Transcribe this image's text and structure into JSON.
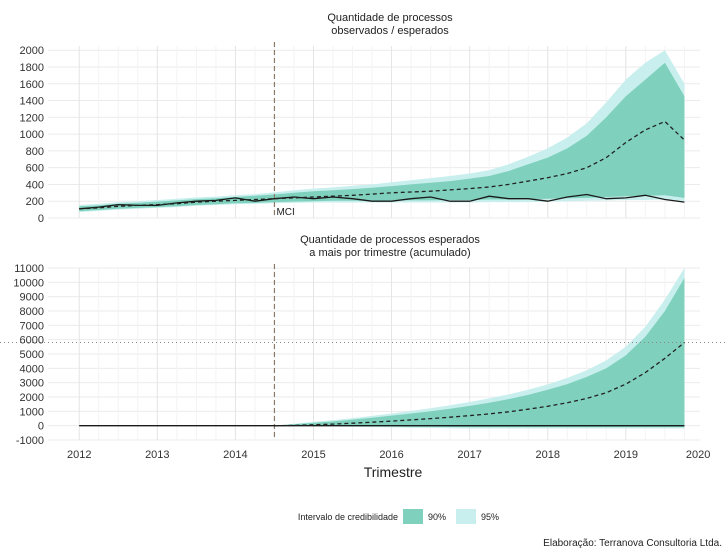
{
  "chart_data": [
    {
      "type": "line",
      "title_lines": [
        "Quantidade de processos",
        "observados / esperados"
      ],
      "xlim": [
        2011.6,
        2019.95
      ],
      "ylim": [
        0,
        2050
      ],
      "yticks": [
        0,
        200,
        400,
        600,
        800,
        1000,
        1200,
        1400,
        1600,
        1800,
        2000
      ],
      "grid": true,
      "intervention": {
        "x": 2014.5,
        "label": "MCI"
      },
      "observed": {
        "x": [
          2012.0,
          2012.25,
          2012.5,
          2012.75,
          2013.0,
          2013.25,
          2013.5,
          2013.75,
          2014.0,
          2014.25,
          2014.5,
          2014.75,
          2015.0,
          2015.25,
          2015.5,
          2015.75,
          2016.0,
          2016.25,
          2016.5,
          2016.75,
          2017.0,
          2017.25,
          2017.5,
          2017.75,
          2018.0,
          2018.25,
          2018.5,
          2018.75,
          2019.0,
          2019.25,
          2019.5,
          2019.75
        ],
        "y": [
          110,
          130,
          160,
          150,
          150,
          180,
          200,
          210,
          240,
          200,
          230,
          250,
          230,
          250,
          230,
          200,
          200,
          230,
          250,
          200,
          200,
          260,
          230,
          230,
          200,
          250,
          280,
          230,
          240,
          270,
          220,
          190
        ]
      },
      "expected": {
        "x": [
          2012.0,
          2012.25,
          2012.5,
          2012.75,
          2013.0,
          2013.25,
          2013.5,
          2013.75,
          2014.0,
          2014.25,
          2014.5,
          2014.75,
          2015.0,
          2015.25,
          2015.5,
          2015.75,
          2016.0,
          2016.25,
          2016.5,
          2016.75,
          2017.0,
          2017.25,
          2017.5,
          2017.75,
          2018.0,
          2018.25,
          2018.5,
          2018.75,
          2019.0,
          2019.25,
          2019.5,
          2019.75
        ],
        "y": [
          110,
          120,
          140,
          150,
          160,
          170,
          190,
          200,
          210,
          220,
          230,
          240,
          250,
          260,
          270,
          285,
          300,
          310,
          320,
          335,
          350,
          370,
          400,
          440,
          480,
          530,
          600,
          720,
          900,
          1050,
          1150,
          930
        ]
      },
      "band90": {
        "x": [
          2012.0,
          2012.25,
          2012.5,
          2012.75,
          2013.0,
          2013.25,
          2013.5,
          2013.75,
          2014.0,
          2014.25,
          2014.5,
          2014.75,
          2015.0,
          2015.25,
          2015.5,
          2015.75,
          2016.0,
          2016.25,
          2016.5,
          2016.75,
          2017.0,
          2017.25,
          2017.5,
          2017.75,
          2018.0,
          2018.25,
          2018.5,
          2018.75,
          2019.0,
          2019.25,
          2019.5,
          2019.75
        ],
        "lower": [
          80,
          95,
          110,
          120,
          130,
          140,
          155,
          165,
          175,
          180,
          190,
          195,
          200,
          205,
          205,
          205,
          210,
          210,
          210,
          215,
          215,
          220,
          220,
          225,
          230,
          235,
          240,
          250,
          260,
          265,
          270,
          240
        ],
        "upper": [
          140,
          150,
          170,
          180,
          195,
          210,
          225,
          235,
          250,
          265,
          280,
          300,
          320,
          330,
          345,
          360,
          380,
          400,
          420,
          440,
          470,
          500,
          560,
          640,
          720,
          830,
          980,
          1200,
          1450,
          1650,
          1850,
          1450
        ]
      },
      "band95": {
        "x": [
          2012.0,
          2012.25,
          2012.5,
          2012.75,
          2013.0,
          2013.25,
          2013.5,
          2013.75,
          2014.0,
          2014.25,
          2014.5,
          2014.75,
          2015.0,
          2015.25,
          2015.5,
          2015.75,
          2016.0,
          2016.25,
          2016.5,
          2016.75,
          2017.0,
          2017.25,
          2017.5,
          2017.75,
          2018.0,
          2018.25,
          2018.5,
          2018.75,
          2019.0,
          2019.25,
          2019.5,
          2019.75
        ],
        "lower": [
          70,
          85,
          100,
          110,
          120,
          130,
          145,
          155,
          165,
          170,
          175,
          180,
          185,
          185,
          185,
          185,
          185,
          185,
          185,
          185,
          185,
          190,
          190,
          190,
          195,
          200,
          205,
          210,
          215,
          215,
          220,
          200
        ],
        "upper": [
          155,
          170,
          190,
          200,
          215,
          230,
          245,
          255,
          270,
          285,
          305,
          330,
          350,
          365,
          385,
          400,
          425,
          450,
          475,
          500,
          530,
          570,
          640,
          730,
          830,
          960,
          1130,
          1380,
          1650,
          1850,
          2000,
          1600
        ]
      }
    },
    {
      "type": "line",
      "title_lines": [
        "Quantidade de processos esperados",
        "a mais por trimestre (acumulado)"
      ],
      "xlim": [
        2011.6,
        2019.95
      ],
      "ylim": [
        -1000,
        11000
      ],
      "yticks": [
        -1000,
        0,
        1000,
        2000,
        3000,
        4000,
        5000,
        6000,
        7000,
        8000,
        9000,
        10000,
        11000
      ],
      "grid": true,
      "intervention": {
        "x": 2014.5
      },
      "hline": 5800,
      "zero_line": {
        "x": [
          2012.0,
          2019.75
        ],
        "y": [
          0,
          0
        ]
      },
      "expected": {
        "x": [
          2014.5,
          2014.75,
          2015.0,
          2015.25,
          2015.5,
          2015.75,
          2016.0,
          2016.25,
          2016.5,
          2016.75,
          2017.0,
          2017.25,
          2017.5,
          2017.75,
          2018.0,
          2018.25,
          2018.5,
          2018.75,
          2019.0,
          2019.25,
          2019.5,
          2019.75
        ],
        "y": [
          0,
          20,
          60,
          110,
          170,
          240,
          320,
          400,
          490,
          590,
          700,
          820,
          970,
          1150,
          1350,
          1600,
          1900,
          2300,
          2900,
          3700,
          4700,
          5800
        ]
      },
      "band90": {
        "x": [
          2014.5,
          2014.75,
          2015.0,
          2015.25,
          2015.5,
          2015.75,
          2016.0,
          2016.25,
          2016.5,
          2016.75,
          2017.0,
          2017.25,
          2017.5,
          2017.75,
          2018.0,
          2018.25,
          2018.5,
          2018.75,
          2019.0,
          2019.25,
          2019.5,
          2019.75
        ],
        "lower": [
          0,
          -10,
          -20,
          -30,
          -40,
          -50,
          -60,
          -70,
          -80,
          -90,
          -100,
          -100,
          -100,
          -100,
          -100,
          -100,
          -100,
          -100,
          -100,
          -100,
          -100,
          -100
        ],
        "upper": [
          0,
          100,
          200,
          300,
          420,
          550,
          700,
          850,
          1000,
          1180,
          1380,
          1600,
          1850,
          2150,
          2500,
          2900,
          3400,
          4000,
          4900,
          6200,
          8000,
          10300
        ]
      },
      "band95": {
        "x": [
          2014.5,
          2014.75,
          2015.0,
          2015.25,
          2015.5,
          2015.75,
          2016.0,
          2016.25,
          2016.5,
          2016.75,
          2017.0,
          2017.25,
          2017.5,
          2017.75,
          2018.0,
          2018.25,
          2018.5,
          2018.75,
          2019.0,
          2019.25,
          2019.5,
          2019.75
        ],
        "lower": [
          0,
          -20,
          -40,
          -60,
          -80,
          -100,
          -120,
          -140,
          -160,
          -180,
          -200,
          -200,
          -200,
          -200,
          -200,
          -200,
          -200,
          -200,
          -200,
          -200,
          -200,
          -200
        ],
        "upper": [
          0,
          130,
          260,
          390,
          530,
          680,
          850,
          1030,
          1220,
          1430,
          1650,
          1900,
          2180,
          2500,
          2880,
          3330,
          3870,
          4550,
          5500,
          6900,
          8800,
          11000
        ]
      }
    }
  ],
  "x_ticks": [
    2012,
    2013,
    2014,
    2015,
    2016,
    2017,
    2018,
    2019,
    2020
  ],
  "x_axis_label": "Trimestre",
  "legend": {
    "title": "Intervalo de credibilidade",
    "items": [
      {
        "label": "90%",
        "color": "#7fd1bd"
      },
      {
        "label": "95%",
        "color": "#c8efed"
      }
    ]
  },
  "colors": {
    "band90": "#7fd1bd",
    "band95": "#c8efed",
    "observed": "#1a1a1a",
    "grid": "#ebebeb"
  },
  "caption": "Elaboração: Terranova Consultoria Ltda."
}
